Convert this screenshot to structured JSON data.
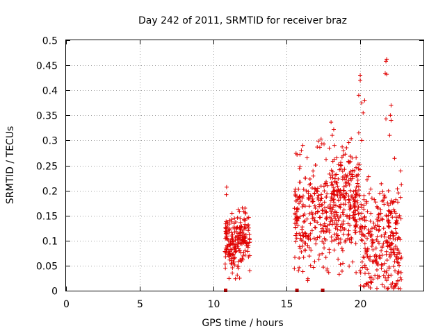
{
  "chart_data": {
    "type": "scatter",
    "title": "Day 242 of 2011, SRMTID for receiver braz",
    "xlabel": "GPS time / hours",
    "ylabel": "SRMTID / TECUs",
    "xlim": [
      0,
      24.3
    ],
    "ylim": [
      0,
      0.5
    ],
    "x_ticks": [
      "0",
      "5",
      "10",
      "15",
      "20"
    ],
    "y_ticks": [
      "0",
      "0.05",
      "0.1",
      "0.15",
      "0.2",
      "0.25",
      "0.3",
      "0.35",
      "0.4",
      "0.45",
      "0.5"
    ],
    "grid": true,
    "marker": "+",
    "color": "#e00000",
    "baseline_marks_x": [
      10.85,
      15.7,
      17.45
    ],
    "clusters": [
      {
        "x_range": [
          10.8,
          12.5
        ],
        "y_center": 0.1,
        "y_spread": 0.03,
        "count": 220,
        "seed": 11
      },
      {
        "x_range": [
          15.5,
          17.9
        ],
        "y_center": 0.16,
        "y_spread": 0.055,
        "count": 230,
        "seed": 23
      },
      {
        "x_range": [
          17.9,
          20.0
        ],
        "y_center": 0.17,
        "y_spread": 0.055,
        "count": 280,
        "seed": 37
      },
      {
        "x_range": [
          20.0,
          22.8
        ],
        "y_center": 0.1,
        "y_spread": 0.06,
        "count": 300,
        "seed": 53
      }
    ],
    "notable_points": [
      {
        "x": 21.8,
        "y": 0.462
      },
      {
        "x": 21.75,
        "y": 0.458
      },
      {
        "x": 21.7,
        "y": 0.434
      },
      {
        "x": 21.8,
        "y": 0.432
      },
      {
        "x": 20.0,
        "y": 0.43
      },
      {
        "x": 20.0,
        "y": 0.42
      },
      {
        "x": 19.9,
        "y": 0.39
      },
      {
        "x": 20.1,
        "y": 0.375
      },
      {
        "x": 20.3,
        "y": 0.38
      },
      {
        "x": 20.2,
        "y": 0.355
      },
      {
        "x": 22.1,
        "y": 0.37
      },
      {
        "x": 22.05,
        "y": 0.35
      },
      {
        "x": 22.1,
        "y": 0.34
      },
      {
        "x": 21.75,
        "y": 0.343
      },
      {
        "x": 22.0,
        "y": 0.31
      },
      {
        "x": 18.2,
        "y": 0.322
      },
      {
        "x": 18.1,
        "y": 0.31
      },
      {
        "x": 18.25,
        "y": 0.29
      },
      {
        "x": 19.9,
        "y": 0.315
      },
      {
        "x": 20.1,
        "y": 0.3
      },
      {
        "x": 16.1,
        "y": 0.29
      },
      {
        "x": 16.0,
        "y": 0.28
      },
      {
        "x": 15.9,
        "y": 0.272
      },
      {
        "x": 11.7,
        "y": 0.162
      },
      {
        "x": 11.7,
        "y": 0.045
      },
      {
        "x": 11.8,
        "y": 0.025
      },
      {
        "x": 15.8,
        "y": 0.04
      },
      {
        "x": 16.9,
        "y": 0.058
      },
      {
        "x": 21.0,
        "y": 0.03
      },
      {
        "x": 21.2,
        "y": 0.025
      },
      {
        "x": 22.4,
        "y": 0.01
      },
      {
        "x": 22.6,
        "y": 0.005
      },
      {
        "x": 22.2,
        "y": 0.015
      },
      {
        "x": 22.6,
        "y": 0.035
      },
      {
        "x": 21.9,
        "y": 0.005
      },
      {
        "x": 21.5,
        "y": 0.012
      }
    ]
  }
}
